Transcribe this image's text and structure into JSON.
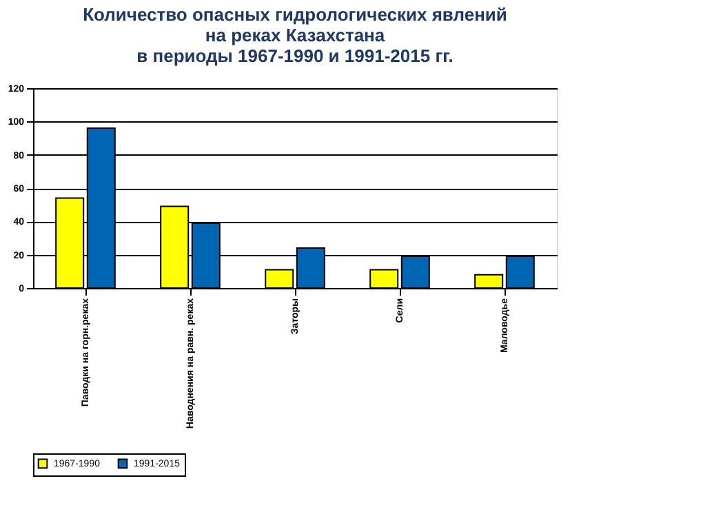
{
  "chart_data": {
    "type": "bar",
    "title": "Количество опасных гидрологических явлений\nна реках Казахстана\nв периоды 1967-1990 и 1991-2015 гг.",
    "categories": [
      "Паводки на горн.реках",
      "Наводнения на равн. реках",
      "Заторы",
      "Сели",
      "Маловодье"
    ],
    "series": [
      {
        "name": "1967-1990",
        "color": "#ffff00",
        "values": [
          54,
          49,
          11,
          11,
          8
        ]
      },
      {
        "name": "1991-2015",
        "color": "#0066b3",
        "values": [
          96,
          39,
          24,
          19,
          19
        ]
      }
    ],
    "ylim": [
      0,
      120
    ],
    "yticks": [
      0,
      20,
      40,
      60,
      80,
      100,
      120
    ],
    "grid": "y",
    "legend": "bottom"
  }
}
